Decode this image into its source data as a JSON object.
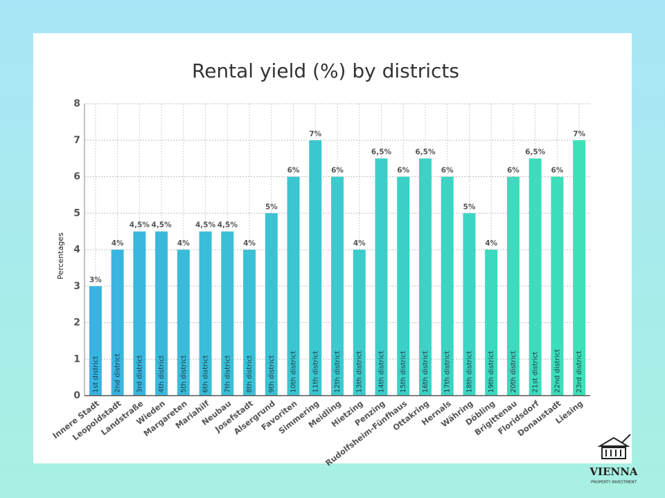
{
  "chart_data": {
    "type": "bar",
    "title": "Rental yield (%) by districts",
    "y_label": "Percentages",
    "categories": [
      "Innere Stadt",
      "Leopoldstadt",
      "Landstraße",
      "Wieden",
      "Margareten",
      "Mariahilf",
      "Neubau",
      "Josefstadt",
      "Alsergrund",
      "Favoriten",
      "Simmering",
      "Meidling",
      "Hietzing",
      "Penzing",
      "Rudolfsheim-Fünfhaus",
      "Ottakring",
      "Hernals",
      "Währing",
      "Döbling",
      "Brigittenau",
      "Floridsdorf",
      "Donaustadt",
      "Liesing"
    ],
    "bar_labels": [
      "1st district",
      "2nd district",
      "3rd district",
      "4th district",
      "5th district",
      "6th district",
      "7th district",
      "8th district",
      "9th district",
      "10th district",
      "11th district",
      "12th district",
      "13th district",
      "14th district",
      "15th district",
      "16th district",
      "17th district",
      "18th district",
      "19th district",
      "20th district",
      "21st district",
      "22nd district",
      "23rd district"
    ],
    "values": [
      3,
      4,
      4.5,
      4.5,
      4,
      4.5,
      4.5,
      4,
      5,
      6,
      7,
      6,
      4,
      6.5,
      6,
      6.5,
      6,
      5,
      4,
      6,
      6.5,
      6,
      7
    ],
    "value_labels": [
      "3%",
      "4%",
      "4,5%",
      "4,5%",
      "4%",
      "4,5%",
      "4,5%",
      "4%",
      "5%",
      "6%",
      "7%",
      "6%",
      "4%",
      "6,5%",
      "6%",
      "6,5%",
      "6%",
      "5%",
      "4%",
      "6%",
      "6,5%",
      "6%",
      "7%"
    ],
    "colors": [
      "#3ab3e2",
      "#3ab5e0",
      "#3ab7de",
      "#3ab9dc",
      "#3abbda",
      "#3abdd8",
      "#3bbfd7",
      "#3bc1d5",
      "#3bc3d3",
      "#3bc5d1",
      "#3bc7cf",
      "#3bcacd",
      "#3bcccb",
      "#3ccec9",
      "#3cd0c7",
      "#3cd2c5",
      "#3cd4c3",
      "#3cd6c2",
      "#3cd8c0",
      "#3ddabe",
      "#3ddcbc",
      "#3ddeba",
      "#3de0b8"
    ],
    "ylim": [
      0,
      8
    ],
    "yticks": [
      0,
      1,
      2,
      3,
      4,
      5,
      6,
      7,
      8
    ],
    "grid": true
  },
  "logo": {
    "name": "VIENNA",
    "tagline": "PROPERTY INVESTMENT"
  }
}
